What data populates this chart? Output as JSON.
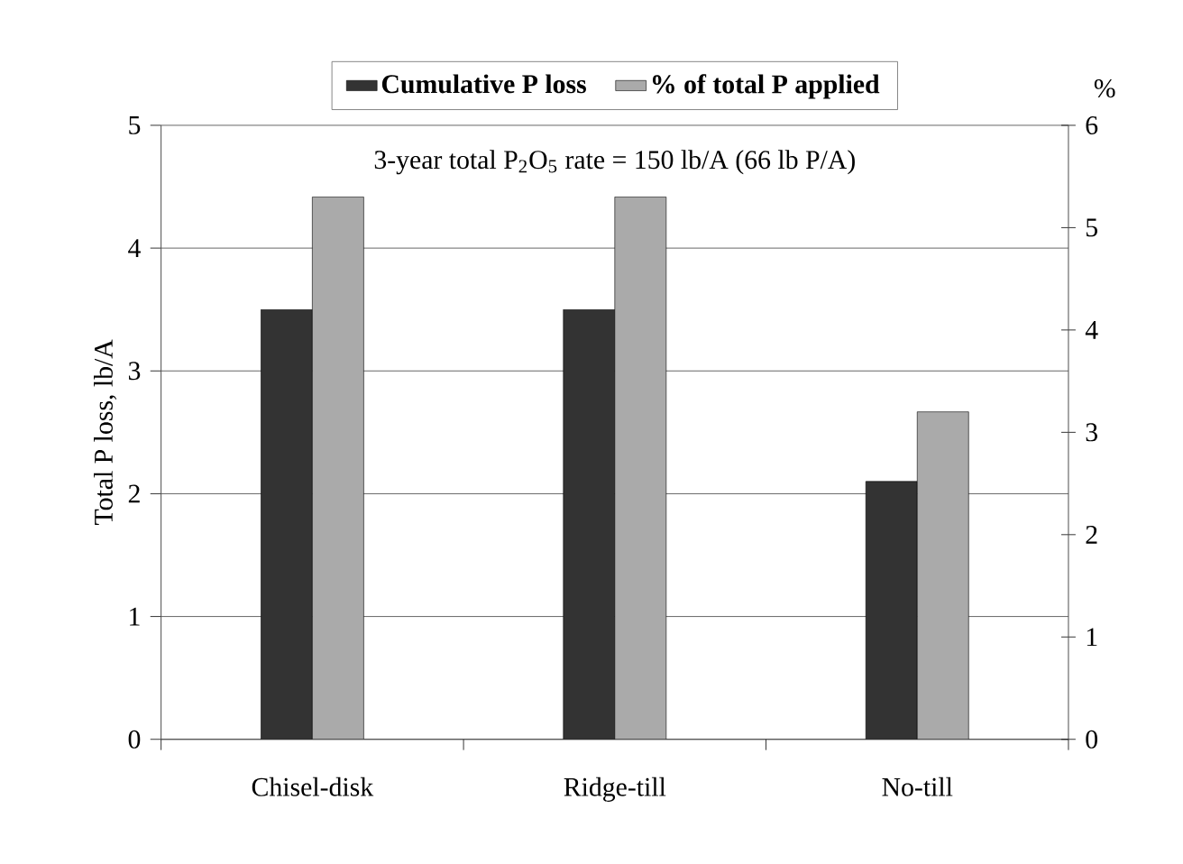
{
  "chart_data": {
    "type": "bar",
    "ylabel": "Total P loss, lb/A",
    "y2label": "%",
    "annotations": [
      "3-year total P$_{2}$O$_{5}$ rate = 150 lb/A (66 lb P/A)"
    ],
    "categories": [
      "Chisel-disk",
      "Ridge-till",
      "No-till"
    ],
    "series": [
      {
        "name": "Cumulative P loss",
        "color": "#333333",
        "values": [
          3.5,
          3.5,
          2.1
        ]
      },
      {
        "name": "% of total P applied",
        "color": "#aaaaaa",
        "values": [
          5.3,
          5.3,
          3.2
        ],
        "axis": "y2"
      }
    ],
    "ylim": [
      0,
      5
    ],
    "yticks": [
      0,
      1,
      2,
      3,
      4,
      5
    ],
    "y2lim": [
      0,
      6
    ],
    "y2ticks": [
      0,
      1,
      2,
      3,
      4,
      5,
      6
    ],
    "grid": "y",
    "legend": "top"
  }
}
